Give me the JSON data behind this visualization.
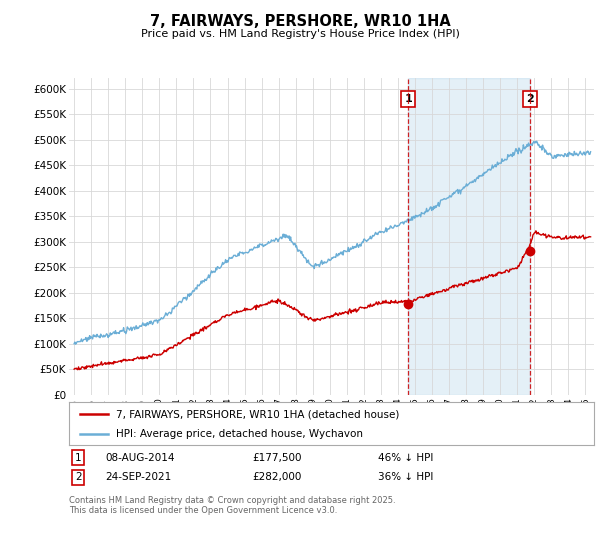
{
  "title": "7, FAIRWAYS, PERSHORE, WR10 1HA",
  "subtitle": "Price paid vs. HM Land Registry's House Price Index (HPI)",
  "hpi_color": "#6baed6",
  "hpi_fill_color": "#ddeeff",
  "price_color": "#cc0000",
  "dashed_line_color": "#cc0000",
  "ylim": [
    0,
    620000
  ],
  "yticks": [
    0,
    50000,
    100000,
    150000,
    200000,
    250000,
    300000,
    350000,
    400000,
    450000,
    500000,
    550000,
    600000
  ],
  "xlim_start": 1994.7,
  "xlim_end": 2025.5,
  "sale1_x": 2014.6,
  "sale1_y": 177500,
  "sale1_label": "1",
  "sale2_x": 2021.72,
  "sale2_y": 282000,
  "sale2_label": "2",
  "legend_line1": "7, FAIRWAYS, PERSHORE, WR10 1HA (detached house)",
  "legend_line2": "HPI: Average price, detached house, Wychavon",
  "table_row1": [
    "1",
    "08-AUG-2014",
    "£177,500",
    "46% ↓ HPI"
  ],
  "table_row2": [
    "2",
    "24-SEP-2021",
    "£282,000",
    "36% ↓ HPI"
  ],
  "footer": "Contains HM Land Registry data © Crown copyright and database right 2025.\nThis data is licensed under the Open Government Licence v3.0.",
  "bg_color": "#ffffff",
  "grid_color": "#d8d8d8"
}
